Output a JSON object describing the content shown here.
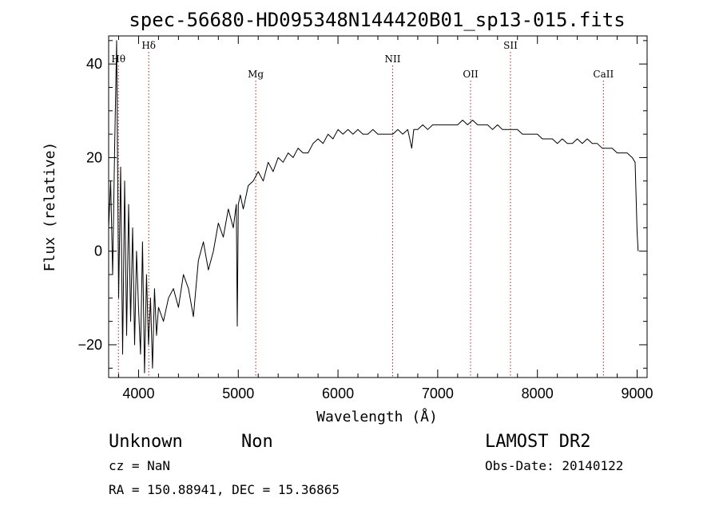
{
  "chart_data": {
    "type": "line",
    "title": "spec-56680-HD095348N144420B01_sp13-015.fits",
    "xlabel": "Wavelength (Å)",
    "ylabel": "Flux (relative)",
    "xlim": [
      3700,
      9100
    ],
    "ylim": [
      -27,
      46
    ],
    "xticks": [
      {
        "value": 4000,
        "label": "4000"
      },
      {
        "value": 5000,
        "label": "5000"
      },
      {
        "value": 6000,
        "label": "6000"
      },
      {
        "value": 7000,
        "label": "7000"
      },
      {
        "value": 8000,
        "label": "8000"
      },
      {
        "value": 9000,
        "label": "9000"
      }
    ],
    "yticks": [
      {
        "value": 40,
        "label": "40"
      },
      {
        "value": 20,
        "label": "20"
      },
      {
        "value": 0,
        "label": "0"
      },
      {
        "value": -20,
        "label": "−20"
      }
    ],
    "spectral_lines": [
      {
        "name": "Hθ",
        "wavelength": 3798,
        "label_row": 1
      },
      {
        "name": "Hδ",
        "wavelength": 4102,
        "label_row": 0
      },
      {
        "name": "Mg",
        "wavelength": 5175,
        "label_row": 2
      },
      {
        "name": "NII",
        "wavelength": 6548,
        "label_row": 1
      },
      {
        "name": "OII",
        "wavelength": 7330,
        "label_row": 2
      },
      {
        "name": "SII",
        "wavelength": 7730,
        "label_row": 0
      },
      {
        "name": "CaII",
        "wavelength": 8662,
        "label_row": 2
      }
    ],
    "series": [
      {
        "x": [
          3700,
          3720,
          3740,
          3760,
          3780,
          3800,
          3820,
          3840,
          3860,
          3880,
          3900,
          3920,
          3940,
          3960,
          3980,
          4000,
          4020,
          4040,
          4060,
          4080,
          4100,
          4120,
          4140,
          4160,
          4180,
          4200,
          4250,
          4300,
          4350,
          4400,
          4450,
          4500,
          4550,
          4600,
          4650,
          4700,
          4750,
          4800,
          4850,
          4900,
          4950,
          4980,
          4990,
          5000,
          5020,
          5050,
          5100,
          5150,
          5200,
          5250,
          5300,
          5350,
          5400,
          5450,
          5500,
          5550,
          5600,
          5650,
          5700,
          5750,
          5800,
          5850,
          5900,
          5950,
          6000,
          6050,
          6100,
          6150,
          6200,
          6250,
          6300,
          6350,
          6400,
          6450,
          6500,
          6550,
          6600,
          6650,
          6700,
          6740,
          6760,
          6800,
          6850,
          6900,
          6950,
          7000,
          7050,
          7100,
          7150,
          7200,
          7250,
          7300,
          7350,
          7400,
          7450,
          7500,
          7550,
          7600,
          7650,
          7700,
          7750,
          7800,
          7850,
          7900,
          7950,
          8000,
          8050,
          8100,
          8150,
          8200,
          8250,
          8300,
          8350,
          8400,
          8450,
          8500,
          8550,
          8600,
          8650,
          8700,
          8750,
          8800,
          8850,
          8900,
          8950,
          8980,
          9000,
          9010
        ],
        "y": [
          5,
          15,
          -5,
          22,
          45,
          -10,
          18,
          -22,
          15,
          -18,
          10,
          -15,
          5,
          -20,
          0,
          -12,
          -22,
          2,
          -26,
          -5,
          -20,
          -10,
          -25,
          -8,
          -18,
          -12,
          -15,
          -10,
          -8,
          -12,
          -5,
          -8,
          -14,
          -2,
          2,
          -4,
          0,
          6,
          3,
          9,
          5,
          10,
          -16,
          10,
          12,
          9,
          14,
          15,
          17,
          15,
          19,
          17,
          20,
          19,
          21,
          20,
          22,
          21,
          21,
          23,
          24,
          23,
          25,
          24,
          26,
          25,
          26,
          25,
          26,
          25,
          25,
          26,
          25,
          25,
          25,
          25,
          26,
          25,
          26,
          22,
          26,
          26,
          27,
          26,
          27,
          27,
          27,
          27,
          27,
          27,
          28,
          27,
          28,
          27,
          27,
          27,
          26,
          27,
          26,
          26,
          26,
          26,
          25,
          25,
          25,
          25,
          24,
          24,
          24,
          23,
          24,
          23,
          23,
          24,
          23,
          24,
          23,
          23,
          22,
          22,
          22,
          21,
          21,
          21,
          20,
          19,
          4,
          0
        ]
      }
    ]
  },
  "footer": {
    "object_name": "Unknown",
    "object_class": "Non",
    "survey": "LAMOST DR2",
    "cz": "cz = NaN",
    "obs_date": "Obs-Date: 20140122",
    "coords": "RA = 150.88941, DEC =  15.36865"
  }
}
